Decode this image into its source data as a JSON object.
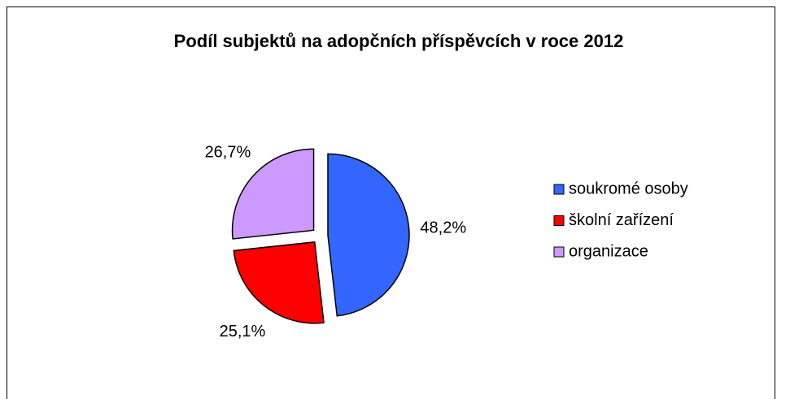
{
  "chart_data": {
    "type": "pie",
    "title": "Podíl subjektů na adopčních příspěvcích v roce 2012",
    "categories": [
      "soukromé osoby",
      "školní zařízení",
      "organizace"
    ],
    "values": [
      48.2,
      25.1,
      26.7
    ],
    "value_labels": [
      "48,2%",
      "25,1%",
      "26,7%"
    ],
    "colors": [
      "#3366ff",
      "#ff0000",
      "#cc99ff"
    ],
    "legend": "right"
  }
}
